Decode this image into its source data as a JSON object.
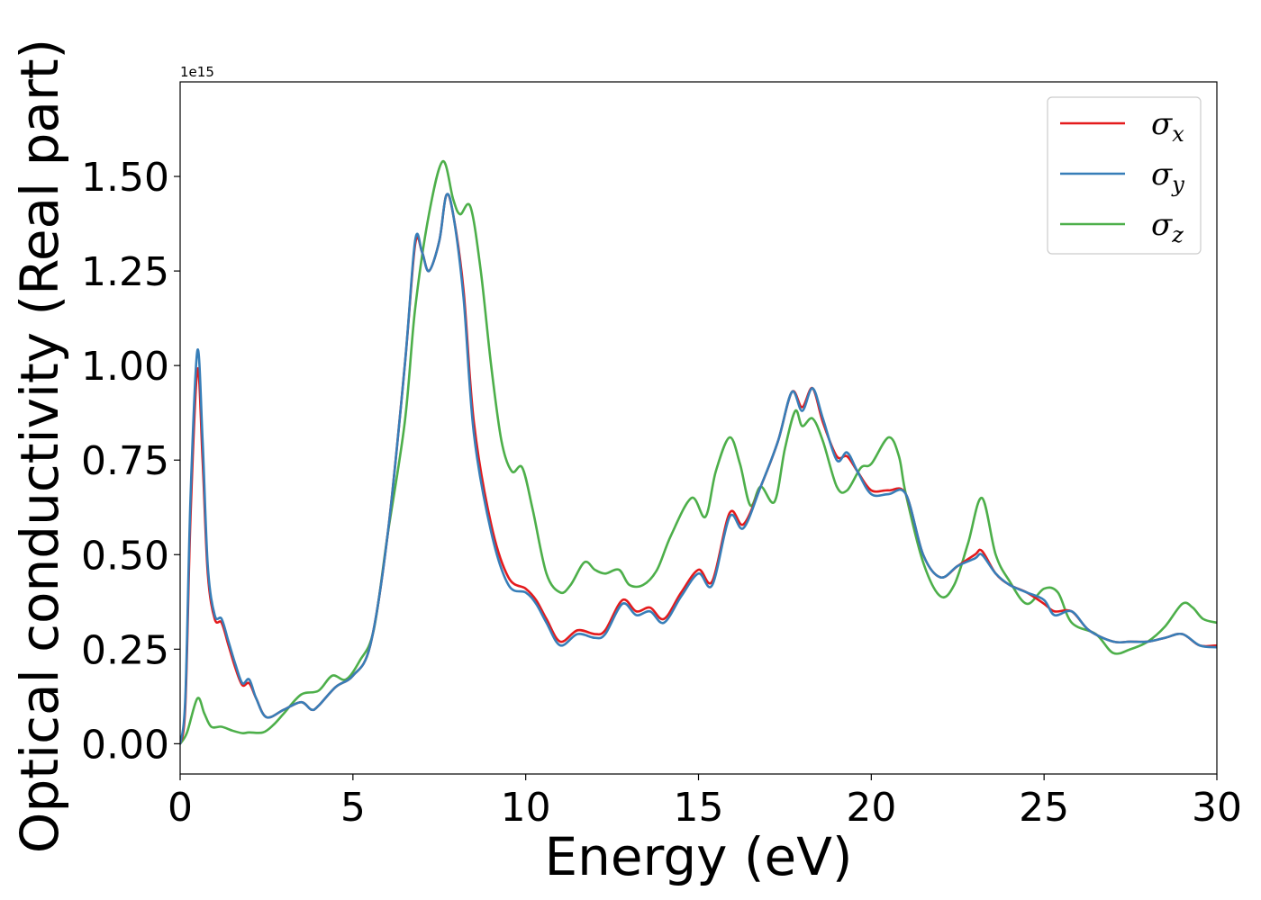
{
  "chart_data": {
    "type": "line",
    "title": "",
    "xlabel": "Energy (eV)",
    "ylabel": "Optical conductivity (Real part)",
    "y_offset_label": "1e15",
    "xlim": [
      0,
      30
    ],
    "ylim": [
      -0.08,
      1.75
    ],
    "x_ticks": [
      0,
      5,
      10,
      15,
      20,
      25,
      30
    ],
    "x_tick_labels": [
      "0",
      "5",
      "10",
      "15",
      "20",
      "25",
      "30"
    ],
    "y_ticks": [
      0,
      0.25,
      0.5,
      0.75,
      1.0,
      1.25,
      1.5
    ],
    "y_tick_labels": [
      "0.00",
      "0.25",
      "0.50",
      "0.75",
      "1.00",
      "1.25",
      "1.50"
    ],
    "grid": false,
    "legend_position": "top-right",
    "series": [
      {
        "name": "σx",
        "symbol": "σ",
        "subscript": "x",
        "color": "#e41a1c",
        "points": [
          [
            0,
            0
          ],
          [
            0.15,
            0.1
          ],
          [
            0.3,
            0.6
          ],
          [
            0.5,
            0.99
          ],
          [
            0.65,
            0.75
          ],
          [
            0.8,
            0.45
          ],
          [
            1.0,
            0.33
          ],
          [
            1.2,
            0.32
          ],
          [
            1.4,
            0.26
          ],
          [
            1.6,
            0.2
          ],
          [
            1.8,
            0.155
          ],
          [
            2.0,
            0.16
          ],
          [
            2.2,
            0.12
          ],
          [
            2.5,
            0.07
          ],
          [
            3.0,
            0.09
          ],
          [
            3.5,
            0.11
          ],
          [
            3.8,
            0.09
          ],
          [
            4.0,
            0.1
          ],
          [
            4.5,
            0.15
          ],
          [
            5.0,
            0.18
          ],
          [
            5.5,
            0.26
          ],
          [
            6.0,
            0.55
          ],
          [
            6.5,
            1.0
          ],
          [
            6.8,
            1.32
          ],
          [
            7.0,
            1.3
          ],
          [
            7.2,
            1.25
          ],
          [
            7.5,
            1.33
          ],
          [
            7.7,
            1.45
          ],
          [
            7.9,
            1.4
          ],
          [
            8.2,
            1.2
          ],
          [
            8.5,
            0.85
          ],
          [
            9.0,
            0.58
          ],
          [
            9.5,
            0.44
          ],
          [
            10.0,
            0.41
          ],
          [
            10.3,
            0.38
          ],
          [
            10.6,
            0.33
          ],
          [
            11.0,
            0.27
          ],
          [
            11.5,
            0.3
          ],
          [
            12.0,
            0.29
          ],
          [
            12.3,
            0.3
          ],
          [
            12.8,
            0.38
          ],
          [
            13.2,
            0.35
          ],
          [
            13.6,
            0.36
          ],
          [
            14.0,
            0.33
          ],
          [
            14.5,
            0.4
          ],
          [
            15.0,
            0.46
          ],
          [
            15.4,
            0.43
          ],
          [
            15.9,
            0.61
          ],
          [
            16.3,
            0.58
          ],
          [
            16.8,
            0.68
          ],
          [
            17.3,
            0.8
          ],
          [
            17.7,
            0.93
          ],
          [
            18.0,
            0.89
          ],
          [
            18.3,
            0.94
          ],
          [
            18.6,
            0.85
          ],
          [
            19.0,
            0.76
          ],
          [
            19.3,
            0.76
          ],
          [
            19.6,
            0.72
          ],
          [
            20.0,
            0.67
          ],
          [
            20.5,
            0.67
          ],
          [
            21.0,
            0.66
          ],
          [
            21.5,
            0.5
          ],
          [
            22.0,
            0.44
          ],
          [
            22.5,
            0.47
          ],
          [
            23.0,
            0.5
          ],
          [
            23.2,
            0.51
          ],
          [
            23.6,
            0.45
          ],
          [
            24.0,
            0.42
          ],
          [
            24.5,
            0.4
          ],
          [
            25.0,
            0.37
          ],
          [
            25.3,
            0.35
          ],
          [
            25.8,
            0.35
          ],
          [
            26.3,
            0.3
          ],
          [
            27.0,
            0.27
          ],
          [
            27.5,
            0.27
          ],
          [
            28.0,
            0.27
          ],
          [
            28.5,
            0.28
          ],
          [
            29.0,
            0.29
          ],
          [
            29.5,
            0.26
          ],
          [
            30,
            0.26
          ]
        ]
      },
      {
        "name": "σy",
        "symbol": "σ",
        "subscript": "y",
        "color": "#377eb8",
        "points": [
          [
            0,
            0
          ],
          [
            0.15,
            0.12
          ],
          [
            0.3,
            0.65
          ],
          [
            0.5,
            1.04
          ],
          [
            0.65,
            0.8
          ],
          [
            0.8,
            0.47
          ],
          [
            1.0,
            0.34
          ],
          [
            1.2,
            0.33
          ],
          [
            1.4,
            0.27
          ],
          [
            1.6,
            0.21
          ],
          [
            1.8,
            0.16
          ],
          [
            2.0,
            0.17
          ],
          [
            2.2,
            0.12
          ],
          [
            2.5,
            0.07
          ],
          [
            3.0,
            0.09
          ],
          [
            3.5,
            0.11
          ],
          [
            3.8,
            0.09
          ],
          [
            4.0,
            0.1
          ],
          [
            4.5,
            0.15
          ],
          [
            5.0,
            0.18
          ],
          [
            5.5,
            0.26
          ],
          [
            6.0,
            0.55
          ],
          [
            6.5,
            1.0
          ],
          [
            6.8,
            1.33
          ],
          [
            7.0,
            1.3
          ],
          [
            7.2,
            1.25
          ],
          [
            7.5,
            1.33
          ],
          [
            7.7,
            1.45
          ],
          [
            7.9,
            1.4
          ],
          [
            8.2,
            1.18
          ],
          [
            8.5,
            0.82
          ],
          [
            9.0,
            0.56
          ],
          [
            9.5,
            0.42
          ],
          [
            10.0,
            0.4
          ],
          [
            10.3,
            0.37
          ],
          [
            10.6,
            0.32
          ],
          [
            11.0,
            0.26
          ],
          [
            11.5,
            0.29
          ],
          [
            12.0,
            0.28
          ],
          [
            12.3,
            0.29
          ],
          [
            12.8,
            0.37
          ],
          [
            13.2,
            0.34
          ],
          [
            13.6,
            0.35
          ],
          [
            14.0,
            0.32
          ],
          [
            14.5,
            0.39
          ],
          [
            15.0,
            0.45
          ],
          [
            15.4,
            0.42
          ],
          [
            15.9,
            0.6
          ],
          [
            16.3,
            0.57
          ],
          [
            16.8,
            0.68
          ],
          [
            17.3,
            0.8
          ],
          [
            17.7,
            0.93
          ],
          [
            18.0,
            0.88
          ],
          [
            18.3,
            0.94
          ],
          [
            18.6,
            0.86
          ],
          [
            19.0,
            0.75
          ],
          [
            19.3,
            0.77
          ],
          [
            19.6,
            0.72
          ],
          [
            20.0,
            0.66
          ],
          [
            20.5,
            0.66
          ],
          [
            21.0,
            0.66
          ],
          [
            21.5,
            0.5
          ],
          [
            22.0,
            0.44
          ],
          [
            22.5,
            0.47
          ],
          [
            23.0,
            0.49
          ],
          [
            23.2,
            0.5
          ],
          [
            23.6,
            0.45
          ],
          [
            24.0,
            0.42
          ],
          [
            24.5,
            0.4
          ],
          [
            25.0,
            0.38
          ],
          [
            25.3,
            0.34
          ],
          [
            25.8,
            0.35
          ],
          [
            26.3,
            0.3
          ],
          [
            27.0,
            0.27
          ],
          [
            27.5,
            0.27
          ],
          [
            28.0,
            0.27
          ],
          [
            28.5,
            0.28
          ],
          [
            29.0,
            0.29
          ],
          [
            29.5,
            0.26
          ],
          [
            30,
            0.255
          ]
        ]
      },
      {
        "name": "σz",
        "symbol": "σ",
        "subscript": "z",
        "color": "#4daf4a",
        "points": [
          [
            0,
            0
          ],
          [
            0.2,
            0.03
          ],
          [
            0.5,
            0.12
          ],
          [
            0.7,
            0.08
          ],
          [
            0.9,
            0.045
          ],
          [
            1.2,
            0.045
          ],
          [
            1.5,
            0.035
          ],
          [
            1.8,
            0.028
          ],
          [
            2.0,
            0.03
          ],
          [
            2.4,
            0.03
          ],
          [
            2.7,
            0.05
          ],
          [
            3.0,
            0.08
          ],
          [
            3.5,
            0.13
          ],
          [
            4.0,
            0.14
          ],
          [
            4.4,
            0.18
          ],
          [
            4.8,
            0.17
          ],
          [
            5.2,
            0.22
          ],
          [
            5.6,
            0.3
          ],
          [
            6.0,
            0.55
          ],
          [
            6.5,
            0.85
          ],
          [
            6.8,
            1.15
          ],
          [
            7.2,
            1.4
          ],
          [
            7.6,
            1.54
          ],
          [
            7.9,
            1.44
          ],
          [
            8.1,
            1.4
          ],
          [
            8.4,
            1.42
          ],
          [
            8.7,
            1.25
          ],
          [
            9.0,
            1.0
          ],
          [
            9.3,
            0.8
          ],
          [
            9.6,
            0.72
          ],
          [
            9.9,
            0.73
          ],
          [
            10.2,
            0.62
          ],
          [
            10.6,
            0.45
          ],
          [
            11.0,
            0.4
          ],
          [
            11.3,
            0.42
          ],
          [
            11.7,
            0.48
          ],
          [
            12.0,
            0.46
          ],
          [
            12.3,
            0.45
          ],
          [
            12.7,
            0.46
          ],
          [
            13.0,
            0.42
          ],
          [
            13.4,
            0.42
          ],
          [
            13.8,
            0.46
          ],
          [
            14.2,
            0.55
          ],
          [
            14.8,
            0.65
          ],
          [
            15.2,
            0.6
          ],
          [
            15.5,
            0.72
          ],
          [
            15.9,
            0.81
          ],
          [
            16.2,
            0.74
          ],
          [
            16.5,
            0.63
          ],
          [
            16.8,
            0.68
          ],
          [
            17.2,
            0.64
          ],
          [
            17.5,
            0.78
          ],
          [
            17.8,
            0.88
          ],
          [
            18.0,
            0.84
          ],
          [
            18.3,
            0.86
          ],
          [
            18.6,
            0.8
          ],
          [
            19.0,
            0.68
          ],
          [
            19.3,
            0.67
          ],
          [
            19.7,
            0.73
          ],
          [
            20.0,
            0.74
          ],
          [
            20.5,
            0.81
          ],
          [
            20.8,
            0.76
          ],
          [
            21.0,
            0.66
          ],
          [
            21.5,
            0.48
          ],
          [
            22.0,
            0.39
          ],
          [
            22.4,
            0.42
          ],
          [
            22.8,
            0.53
          ],
          [
            23.2,
            0.65
          ],
          [
            23.6,
            0.5
          ],
          [
            24.0,
            0.43
          ],
          [
            24.5,
            0.37
          ],
          [
            25.0,
            0.41
          ],
          [
            25.4,
            0.4
          ],
          [
            25.8,
            0.32
          ],
          [
            26.5,
            0.29
          ],
          [
            27.0,
            0.24
          ],
          [
            27.5,
            0.25
          ],
          [
            28.0,
            0.27
          ],
          [
            28.5,
            0.31
          ],
          [
            29.0,
            0.37
          ],
          [
            29.3,
            0.36
          ],
          [
            29.6,
            0.33
          ],
          [
            30,
            0.32
          ]
        ]
      }
    ]
  }
}
